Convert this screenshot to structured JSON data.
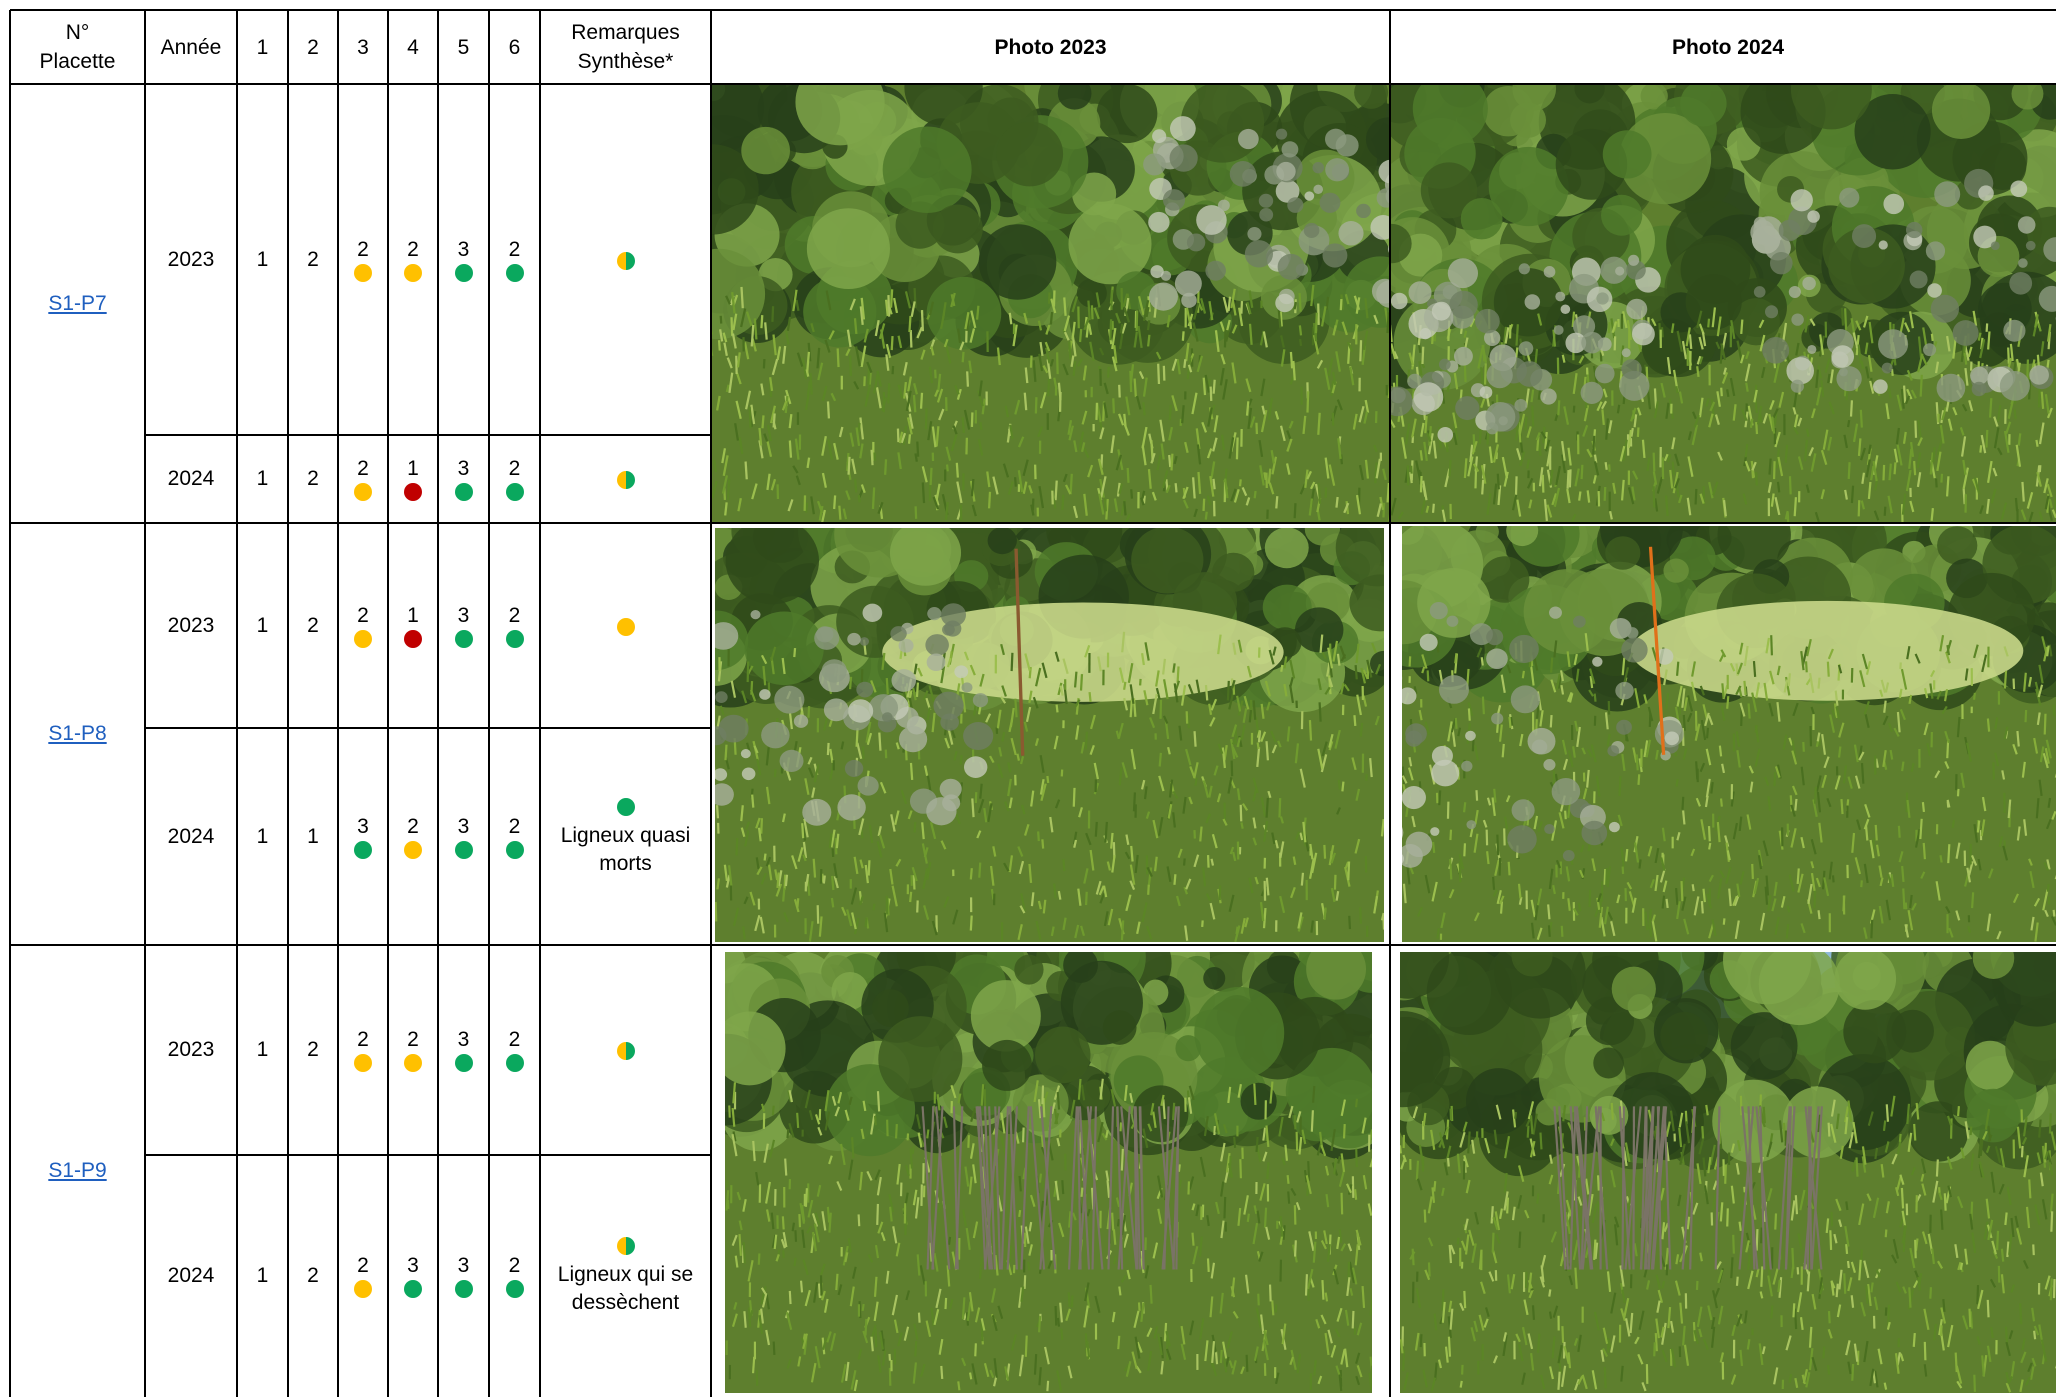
{
  "header": {
    "placette": "N°\nPlacette",
    "annee": "Année",
    "cols": [
      "1",
      "2",
      "3",
      "4",
      "5",
      "6"
    ],
    "remarques": "Remarques\nSynthèse*",
    "photo_2023": "Photo 2023",
    "photo_2024": "Photo 2024"
  },
  "colors": {
    "green": "#0aa85e",
    "yellow": "#ffc000",
    "red": "#c00000",
    "link": "#1f5fbf"
  },
  "plots": [
    {
      "id": "S1-P7",
      "rows": [
        {
          "year": "2023",
          "c1": "1",
          "c2": "2",
          "c3": {
            "v": "2",
            "dot": "yellow"
          },
          "c4": {
            "v": "2",
            "dot": "yellow"
          },
          "c5": {
            "v": "3",
            "dot": "green"
          },
          "c6": {
            "v": "2",
            "dot": "green"
          },
          "remark": {
            "dot": "split",
            "text": ""
          }
        },
        {
          "year": "2024",
          "c1": "1",
          "c2": "2",
          "c3": {
            "v": "2",
            "dot": "yellow"
          },
          "c4": {
            "v": "1",
            "dot": "red"
          },
          "c5": {
            "v": "3",
            "dot": "green"
          },
          "c6": {
            "v": "2",
            "dot": "green"
          },
          "remark": {
            "dot": "split",
            "text": ""
          }
        }
      ]
    },
    {
      "id": "S1-P8",
      "rows": [
        {
          "year": "2023",
          "c1": "1",
          "c2": "2",
          "c3": {
            "v": "2",
            "dot": "yellow"
          },
          "c4": {
            "v": "1",
            "dot": "red"
          },
          "c5": {
            "v": "3",
            "dot": "green"
          },
          "c6": {
            "v": "2",
            "dot": "green"
          },
          "remark": {
            "dot": "yellow",
            "text": ""
          }
        },
        {
          "year": "2024",
          "c1": "1",
          "c2": "1",
          "c3": {
            "v": "3",
            "dot": "green"
          },
          "c4": {
            "v": "2",
            "dot": "yellow"
          },
          "c5": {
            "v": "3",
            "dot": "green"
          },
          "c6": {
            "v": "2",
            "dot": "green"
          },
          "remark": {
            "dot": "green",
            "text": "Ligneux quasi\nmorts"
          }
        }
      ]
    },
    {
      "id": "S1-P9",
      "rows": [
        {
          "year": "2023",
          "c1": "1",
          "c2": "2",
          "c3": {
            "v": "2",
            "dot": "yellow"
          },
          "c4": {
            "v": "2",
            "dot": "yellow"
          },
          "c5": {
            "v": "3",
            "dot": "green"
          },
          "c6": {
            "v": "2",
            "dot": "green"
          },
          "remark": {
            "dot": "split",
            "text": ""
          }
        },
        {
          "year": "2024",
          "c1": "1",
          "c2": "2",
          "c3": {
            "v": "2",
            "dot": "yellow"
          },
          "c4": {
            "v": "3",
            "dot": "green"
          },
          "c5": {
            "v": "3",
            "dot": "green"
          },
          "c6": {
            "v": "2",
            "dot": "green"
          },
          "remark": {
            "dot": "split",
            "text": "Ligneux qui se\ndessèchent"
          }
        }
      ]
    }
  ]
}
